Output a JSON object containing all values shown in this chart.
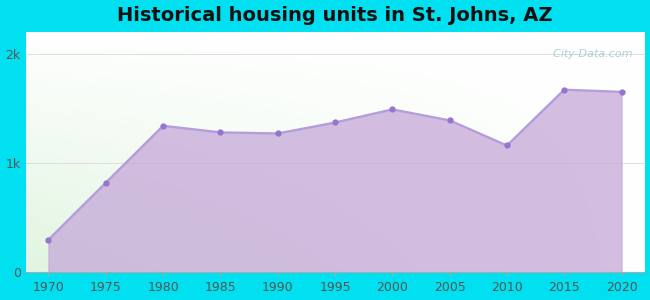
{
  "title": "Historical housing units in St. Johns, AZ",
  "title_fontsize": 14,
  "title_fontweight": "bold",
  "years": [
    1970,
    1975,
    1980,
    1985,
    1990,
    1995,
    2000,
    2005,
    2010,
    2015,
    2020
  ],
  "values": [
    300,
    820,
    1340,
    1280,
    1270,
    1370,
    1490,
    1390,
    1160,
    1670,
    1650
  ],
  "ylim": [
    0,
    2200
  ],
  "yticks": [
    0,
    1000,
    2000
  ],
  "ytick_labels": [
    "0",
    "1k",
    "2k"
  ],
  "xticks": [
    1970,
    1975,
    1980,
    1985,
    1990,
    1995,
    2000,
    2005,
    2010,
    2015,
    2020
  ],
  "line_color": "#b39ddb",
  "fill_color": "#c5a8d8",
  "fill_alpha": 0.75,
  "marker_color": "#9575cd",
  "marker_size": 3.5,
  "bg_outer": "#00e0f0",
  "grid_color": "#dddddd",
  "watermark": "  City-Data.com",
  "watermark_color": "#a0cdd4"
}
